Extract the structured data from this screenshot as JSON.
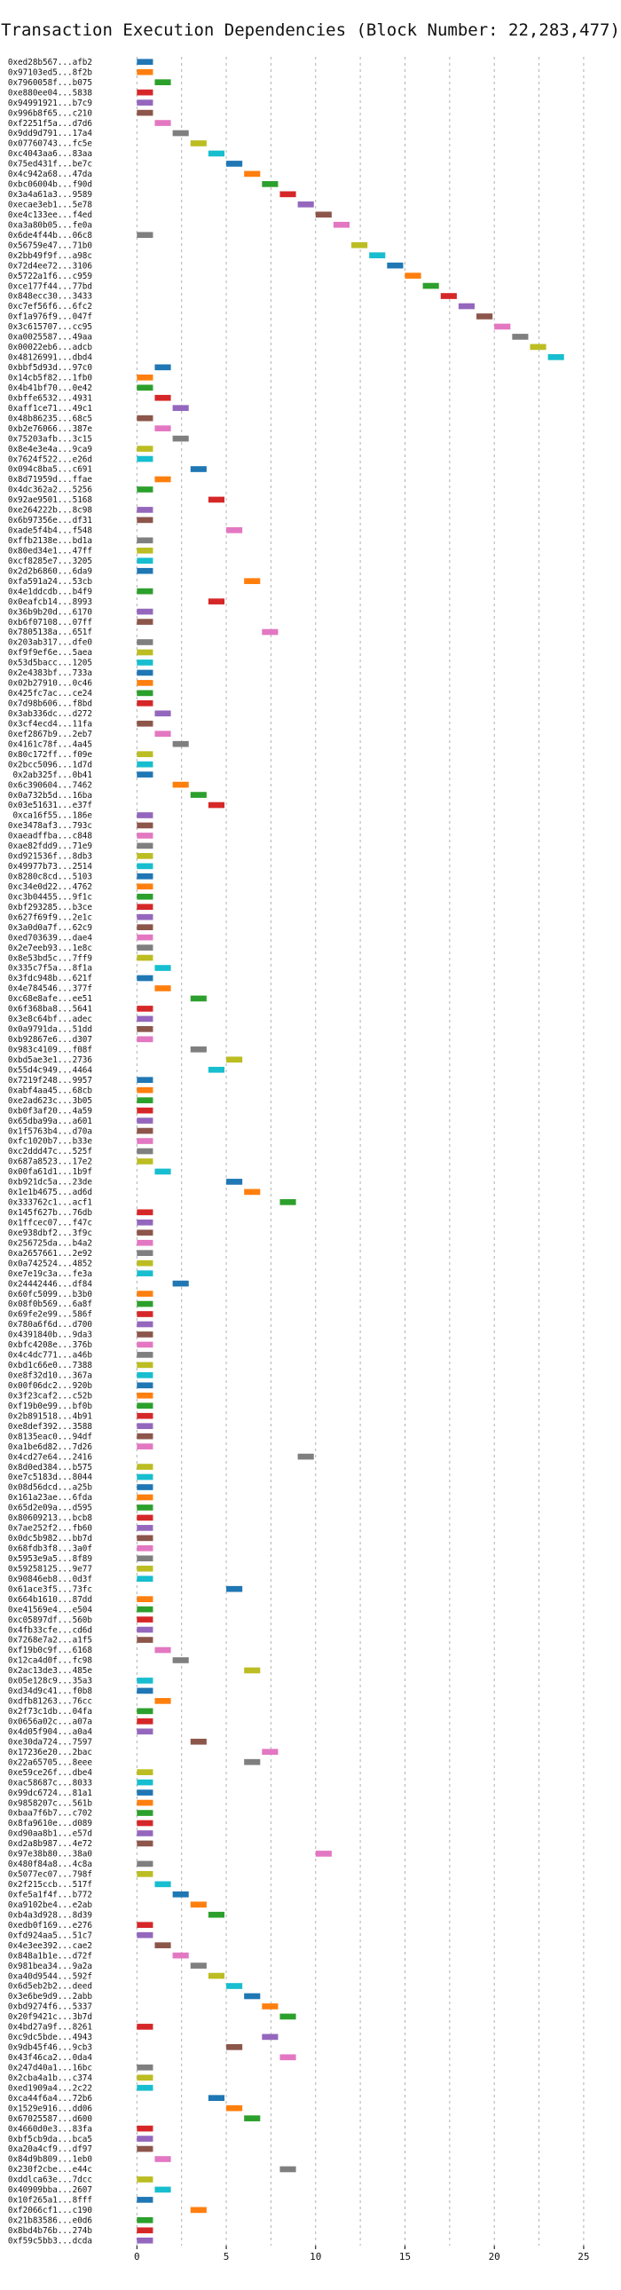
{
  "chart_data": {
    "type": "bar",
    "orientation": "horizontal-gantt",
    "title": "Transaction Execution Dependencies (Block Number: 22,283,477)",
    "xlabel": "",
    "ylabel": "",
    "xlim": [
      -2.2,
      25.6
    ],
    "xticks": [
      0,
      5,
      10,
      15,
      20,
      25
    ],
    "grid": true,
    "bar_width": 1,
    "palette": [
      "#1f77b4",
      "#ff7f0e",
      "#2ca02c",
      "#d62728",
      "#9467bd",
      "#8c564b",
      "#e377c2",
      "#7f7f7f",
      "#bcbd22",
      "#17becf"
    ],
    "transactions": [
      {
        "label": "0xed28b567...afb2",
        "start": 0
      },
      {
        "label": "0x97103ed5...8f2b",
        "start": 0
      },
      {
        "label": "0x7960058f...b075",
        "start": 1
      },
      {
        "label": "0xe880ee04...5838",
        "start": 0
      },
      {
        "label": "0x94991921...b7c9",
        "start": 0
      },
      {
        "label": "0x996b8f65...c210",
        "start": 0
      },
      {
        "label": "0xf2251f5a...d7d6",
        "start": 1
      },
      {
        "label": "0x9dd9d791...17a4",
        "start": 2
      },
      {
        "label": "0x07760743...fc5e",
        "start": 3
      },
      {
        "label": "0xc4043aa6...83aa",
        "start": 4
      },
      {
        "label": "0x75ed431f...be7c",
        "start": 5
      },
      {
        "label": "0x4c942a68...47da",
        "start": 6
      },
      {
        "label": "0xbc06004b...f90d",
        "start": 7
      },
      {
        "label": "0x3a4a61a3...9589",
        "start": 8
      },
      {
        "label": "0xecae3eb1...5e78",
        "start": 9
      },
      {
        "label": "0xe4c133ee...f4ed",
        "start": 10
      },
      {
        "label": "0xa3a80b05...fe0a",
        "start": 11
      },
      {
        "label": "0x6de4f44b...06c8",
        "start": 0
      },
      {
        "label": "0x56759e47...71b0",
        "start": 12
      },
      {
        "label": "0x2bb49f9f...a98c",
        "start": 13
      },
      {
        "label": "0x72d4ee72...3106",
        "start": 14
      },
      {
        "label": "0x5722a1f6...c959",
        "start": 15
      },
      {
        "label": "0xce177f44...77bd",
        "start": 16
      },
      {
        "label": "0x848ecc30...3433",
        "start": 17
      },
      {
        "label": "0xc7ef56f6...6fc2",
        "start": 18
      },
      {
        "label": "0xf1a976f9...047f",
        "start": 19
      },
      {
        "label": "0x3c615707...cc95",
        "start": 20
      },
      {
        "label": "0xa0025587...49aa",
        "start": 21
      },
      {
        "label": "0x00022eb6...adcb",
        "start": 22
      },
      {
        "label": "0x48126991...dbd4",
        "start": 23
      },
      {
        "label": "0xbbf5d93d...97c0",
        "start": 1
      },
      {
        "label": "0x14cb5f82...1fb0",
        "start": 0
      },
      {
        "label": "0x4b41bf70...0e42",
        "start": 0
      },
      {
        "label": "0xbffe6532...4931",
        "start": 1
      },
      {
        "label": "0xaff1ce71...49c1",
        "start": 2
      },
      {
        "label": "0x48b86235...68c5",
        "start": 0
      },
      {
        "label": "0xb2e76066...387e",
        "start": 1
      },
      {
        "label": "0x75203afb...3c15",
        "start": 2
      },
      {
        "label": "0x8e4e3e4a...9ca9",
        "start": 0
      },
      {
        "label": "0x7624f522...e26d",
        "start": 0
      },
      {
        "label": "0x094c8ba5...c691",
        "start": 3
      },
      {
        "label": "0x8d71959d...ffae",
        "start": 1
      },
      {
        "label": "0x4dc362a2...5256",
        "start": 0
      },
      {
        "label": "0x92ae9501...5168",
        "start": 4
      },
      {
        "label": "0xe264222b...8c98",
        "start": 0
      },
      {
        "label": "0x6b97356e...df31",
        "start": 0
      },
      {
        "label": "0xade5f4b4...f548",
        "start": 5
      },
      {
        "label": "0xffb2138e...bd1a",
        "start": 0
      },
      {
        "label": "0x80ed34e1...47ff",
        "start": 0
      },
      {
        "label": "0xcf8285e7...3205",
        "start": 0
      },
      {
        "label": "0x2d2b6860...6da9",
        "start": 0
      },
      {
        "label": "0xfa591a24...53cb",
        "start": 6
      },
      {
        "label": "0x4e1ddcdb...b4f9",
        "start": 0
      },
      {
        "label": "0x0eafcb14...8993",
        "start": 4
      },
      {
        "label": "0x36b9b20d...6170",
        "start": 0
      },
      {
        "label": "0xb6f07108...07ff",
        "start": 0
      },
      {
        "label": "0x7805138a...651f",
        "start": 7
      },
      {
        "label": "0x203ab317...dfe0",
        "start": 0
      },
      {
        "label": "0xf9f9ef6e...5aea",
        "start": 0
      },
      {
        "label": "0x53d5bacc...1205",
        "start": 0
      },
      {
        "label": "0x2e4383bf...733a",
        "start": 0
      },
      {
        "label": "0x02b27910...0c46",
        "start": 0
      },
      {
        "label": "0x425fc7ac...ce24",
        "start": 0
      },
      {
        "label": "0x7d98b606...f8bd",
        "start": 0
      },
      {
        "label": "0x3ab336dc...d272",
        "start": 1
      },
      {
        "label": "0x3cf4ecd4...11fa",
        "start": 0
      },
      {
        "label": "0xef2867b9...2eb7",
        "start": 1
      },
      {
        "label": "0x4161c78f...4a45",
        "start": 2
      },
      {
        "label": "0x80c172ff...f09e",
        "start": 0
      },
      {
        "label": "0x2bcc5096...1d7d",
        "start": 0
      },
      {
        "label": "0x2ab325f...0b41",
        "start": 0
      },
      {
        "label": "0x6c390604...7462",
        "start": 2
      },
      {
        "label": "0x0a732b5d...16ba",
        "start": 3
      },
      {
        "label": "0x03e51631...e37f",
        "start": 4
      },
      {
        "label": "0xca16f55...186e",
        "start": 0
      },
      {
        "label": "0xe3478af3...793c",
        "start": 0
      },
      {
        "label": "0xaeadffba...c848",
        "start": 0
      },
      {
        "label": "0xae82fdd9...71e9",
        "start": 0
      },
      {
        "label": "0xd921536f...8db3",
        "start": 0
      },
      {
        "label": "0x49977b73...2514",
        "start": 0
      },
      {
        "label": "0x8280c8cd...5103",
        "start": 0
      },
      {
        "label": "0xc34e0d22...4762",
        "start": 0
      },
      {
        "label": "0xc3b04455...9f1c",
        "start": 0
      },
      {
        "label": "0xbf293285...b3ce",
        "start": 0
      },
      {
        "label": "0x627f69f9...2e1c",
        "start": 0
      },
      {
        "label": "0x3a0d0a7f...62c9",
        "start": 0
      },
      {
        "label": "0xed703639...dae4",
        "start": 0
      },
      {
        "label": "0x2e7eeb93...1e8c",
        "start": 0
      },
      {
        "label": "0x8e53bd5c...7ff9",
        "start": 0
      },
      {
        "label": "0x335c7f5a...8f1a",
        "start": 1
      },
      {
        "label": "0x3fdc948b...621f",
        "start": 0
      },
      {
        "label": "0x4e784546...377f",
        "start": 1
      },
      {
        "label": "0xc68e8afe...ee51",
        "start": 3
      },
      {
        "label": "0x6f368ba8...5641",
        "start": 0
      },
      {
        "label": "0x3e8c64bf...adec",
        "start": 0
      },
      {
        "label": "0x0a9791da...51dd",
        "start": 0
      },
      {
        "label": "0xb92867e6...d307",
        "start": 0
      },
      {
        "label": "0x983c4109...f08f",
        "start": 3
      },
      {
        "label": "0xbd5ae3e1...2736",
        "start": 5
      },
      {
        "label": "0x55d4c949...4464",
        "start": 4
      },
      {
        "label": "0x7219f248...9957",
        "start": 0
      },
      {
        "label": "0xabf4aa45...68cb",
        "start": 0
      },
      {
        "label": "0xe2ad623c...3b05",
        "start": 0
      },
      {
        "label": "0xb0f3af20...4a59",
        "start": 0
      },
      {
        "label": "0x65dba99a...a601",
        "start": 0
      },
      {
        "label": "0x1f5763b4...d70a",
        "start": 0
      },
      {
        "label": "0xfc1020b7...b33e",
        "start": 0
      },
      {
        "label": "0xc2ddd47c...525f",
        "start": 0
      },
      {
        "label": "0x687a8523...17e2",
        "start": 0
      },
      {
        "label": "0x00fa61d1...1b9f",
        "start": 1
      },
      {
        "label": "0xb921dc5a...23de",
        "start": 5
      },
      {
        "label": "0x1e1b4675...ad6d",
        "start": 6
      },
      {
        "label": "0x333762c1...acf1",
        "start": 8
      },
      {
        "label": "0x145f627b...76db",
        "start": 0
      },
      {
        "label": "0x1ffcec07...f47c",
        "start": 0
      },
      {
        "label": "0xe938dbf2...3f9c",
        "start": 0
      },
      {
        "label": "0x256725da...b4a2",
        "start": 0
      },
      {
        "label": "0xa2657661...2e92",
        "start": 0
      },
      {
        "label": "0x0a742524...4852",
        "start": 0
      },
      {
        "label": "0xe7e19c3a...fe3a",
        "start": 0
      },
      {
        "label": "0x24442446...df84",
        "start": 2
      },
      {
        "label": "0x60fc5099...b3b0",
        "start": 0
      },
      {
        "label": "0x08f0b569...6a8f",
        "start": 0
      },
      {
        "label": "0x69fe2e99...586f",
        "start": 0
      },
      {
        "label": "0x780a6f6d...d700",
        "start": 0
      },
      {
        "label": "0x4391840b...9da3",
        "start": 0
      },
      {
        "label": "0xbfc4208e...376b",
        "start": 0
      },
      {
        "label": "0x4c4dc771...a46b",
        "start": 0
      },
      {
        "label": "0xbd1c66e0...7388",
        "start": 0
      },
      {
        "label": "0xe8f32d10...367a",
        "start": 0
      },
      {
        "label": "0x00f06dc2...920b",
        "start": 0
      },
      {
        "label": "0x3f23caf2...c52b",
        "start": 0
      },
      {
        "label": "0xf19b0e99...bf0b",
        "start": 0
      },
      {
        "label": "0x2b891518...4b91",
        "start": 0
      },
      {
        "label": "0xe8def392...3588",
        "start": 0
      },
      {
        "label": "0x8135eac0...94df",
        "start": 0
      },
      {
        "label": "0xa1be6d82...7d26",
        "start": 0
      },
      {
        "label": "0x4cd27e64...2416",
        "start": 9
      },
      {
        "label": "0x8d0ed384...b575",
        "start": 0
      },
      {
        "label": "0xe7c5183d...8044",
        "start": 0
      },
      {
        "label": "0x08d56dcd...a25b",
        "start": 0
      },
      {
        "label": "0x161a23ae...6fda",
        "start": 0
      },
      {
        "label": "0x65d2e09a...d595",
        "start": 0
      },
      {
        "label": "0x80609213...bcb8",
        "start": 0
      },
      {
        "label": "0x7ae252f2...fb60",
        "start": 0
      },
      {
        "label": "0x0dc5b982...bb7d",
        "start": 0
      },
      {
        "label": "0x68fdb3f8...3a0f",
        "start": 0
      },
      {
        "label": "0x5953e9a5...8f89",
        "start": 0
      },
      {
        "label": "0x59258125...9e77",
        "start": 0
      },
      {
        "label": "0x90846eb8...0d3f",
        "start": 0
      },
      {
        "label": "0x61ace3f5...73fc",
        "start": 5
      },
      {
        "label": "0x664b1610...87dd",
        "start": 0
      },
      {
        "label": "0xe41569e4...e504",
        "start": 0
      },
      {
        "label": "0xc05897df...560b",
        "start": 0
      },
      {
        "label": "0x4fb33cfe...cd6d",
        "start": 0
      },
      {
        "label": "0x7268e7a2...a1f5",
        "start": 0
      },
      {
        "label": "0xf19b0c9f...6168",
        "start": 1
      },
      {
        "label": "0x12ca4d0f...fc98",
        "start": 2
      },
      {
        "label": "0x2ac13de3...485e",
        "start": 6
      },
      {
        "label": "0x05e128c9...35a3",
        "start": 0
      },
      {
        "label": "0xd34d9c41...f0b8",
        "start": 0
      },
      {
        "label": "0xdfb81263...76cc",
        "start": 1
      },
      {
        "label": "0x2f73c1db...04fa",
        "start": 0
      },
      {
        "label": "0x0656a02c...a07a",
        "start": 0
      },
      {
        "label": "0x4d05f904...a0a4",
        "start": 0
      },
      {
        "label": "0xe30da724...7597",
        "start": 3
      },
      {
        "label": "0x17236e20...2bac",
        "start": 7
      },
      {
        "label": "0x22a65705...8eee",
        "start": 6
      },
      {
        "label": "0xe59ce26f...dbe4",
        "start": 0
      },
      {
        "label": "0xac58687c...8033",
        "start": 0
      },
      {
        "label": "0x99dc6724...81a1",
        "start": 0
      },
      {
        "label": "0x9858207c...561b",
        "start": 0
      },
      {
        "label": "0xbaa7f6b7...c702",
        "start": 0
      },
      {
        "label": "0x8fa9610e...d089",
        "start": 0
      },
      {
        "label": "0xd90aa8b1...e57d",
        "start": 0
      },
      {
        "label": "0xd2a8b987...4e72",
        "start": 0
      },
      {
        "label": "0x97e38b80...38a0",
        "start": 10
      },
      {
        "label": "0x480f84a8...4c8a",
        "start": 0
      },
      {
        "label": "0x5077ec07...798f",
        "start": 0
      },
      {
        "label": "0x2f215ccb...517f",
        "start": 1
      },
      {
        "label": "0xfe5a1f4f...b772",
        "start": 2
      },
      {
        "label": "0xa9102be4...e2ab",
        "start": 3
      },
      {
        "label": "0xb4a3d928...8d39",
        "start": 4
      },
      {
        "label": "0xedb0f169...e276",
        "start": 0
      },
      {
        "label": "0xfd924aa5...51c7",
        "start": 0
      },
      {
        "label": "0x4e3ee392...cae2",
        "start": 1
      },
      {
        "label": "0x848a1b1e...d72f",
        "start": 2
      },
      {
        "label": "0x981bea34...9a2a",
        "start": 3
      },
      {
        "label": "0xa40d9544...592f",
        "start": 4
      },
      {
        "label": "0x6d5eb2b2...deed",
        "start": 5
      },
      {
        "label": "0x3e6be9d9...2abb",
        "start": 6
      },
      {
        "label": "0xbd9274f6...5337",
        "start": 7
      },
      {
        "label": "0x20f9421c...3b7d",
        "start": 8
      },
      {
        "label": "0x4bd27a9f...8261",
        "start": 0
      },
      {
        "label": "0xc9dc5bde...4943",
        "start": 7
      },
      {
        "label": "0x9db45f46...9cb3",
        "start": 5
      },
      {
        "label": "0x43f46ca2...0da4",
        "start": 8
      },
      {
        "label": "0x247d40a1...16bc",
        "start": 0
      },
      {
        "label": "0x2cba4a1b...c374",
        "start": 0
      },
      {
        "label": "0xed1909a4...2c22",
        "start": 0
      },
      {
        "label": "0xca44f6a4...72b6",
        "start": 4
      },
      {
        "label": "0x1529e916...dd06",
        "start": 5
      },
      {
        "label": "0x67025587...d600",
        "start": 6
      },
      {
        "label": "0x4660d0e3...83fa",
        "start": 0
      },
      {
        "label": "0xbf5cb9da...bca5",
        "start": 0
      },
      {
        "label": "0xa20a4cf9...df97",
        "start": 0
      },
      {
        "label": "0x84d9b809...1eb0",
        "start": 1
      },
      {
        "label": "0x230f2cbe...e44c",
        "start": 8
      },
      {
        "label": "0xddlca63e...7dcc",
        "start": 0
      },
      {
        "label": "0x40909bba...2607",
        "start": 1
      },
      {
        "label": "0x10f265a1...8fff",
        "start": 0
      },
      {
        "label": "0xf2066cf1...c190",
        "start": 3
      },
      {
        "label": "0x21b83586...e0d6",
        "start": 0
      },
      {
        "label": "0x8bd4b76b...274b",
        "start": 0
      },
      {
        "label": "0xf59c5bb3...dcda",
        "start": 0
      }
    ]
  }
}
